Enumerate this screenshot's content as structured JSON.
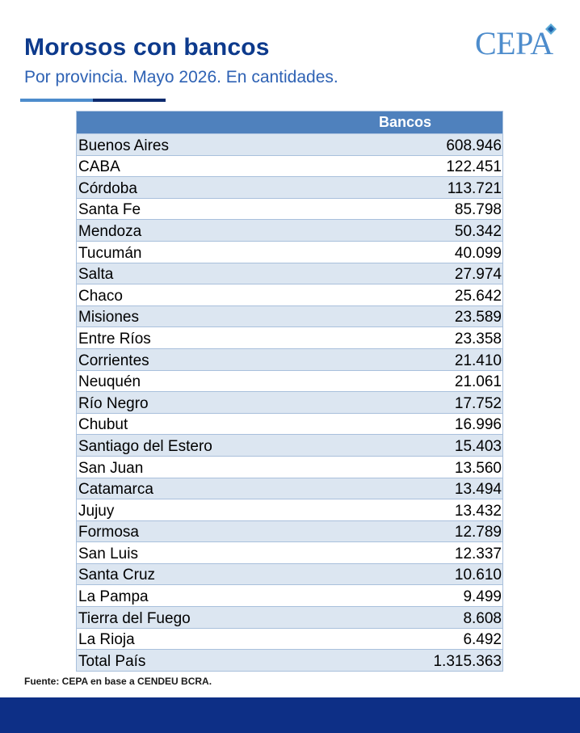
{
  "header": {
    "title": "Morosos con bancos",
    "subtitle": "Por provincia. Mayo 2026. En cantidades."
  },
  "logo": {
    "text": "CEPA",
    "accent_color": "#4d8ccc"
  },
  "table": {
    "column_header": "Bancos",
    "rows": [
      {
        "name": "Buenos Aires",
        "value": "608.946"
      },
      {
        "name": "CABA",
        "value": "122.451"
      },
      {
        "name": "Córdoba",
        "value": "113.721"
      },
      {
        "name": "Santa Fe",
        "value": "85.798"
      },
      {
        "name": "Mendoza",
        "value": "50.342"
      },
      {
        "name": "Tucumán",
        "value": "40.099"
      },
      {
        "name": "Salta",
        "value": "27.974"
      },
      {
        "name": "Chaco",
        "value": "25.642"
      },
      {
        "name": "Misiones",
        "value": "23.589"
      },
      {
        "name": "Entre Ríos",
        "value": "23.358"
      },
      {
        "name": "Corrientes",
        "value": "21.410"
      },
      {
        "name": "Neuquén",
        "value": "21.061"
      },
      {
        "name": "Río Negro",
        "value": "17.752"
      },
      {
        "name": "Chubut",
        "value": "16.996"
      },
      {
        "name": "Santiago del Estero",
        "value": "15.403"
      },
      {
        "name": "San Juan",
        "value": "13.560"
      },
      {
        "name": "Catamarca",
        "value": "13.494"
      },
      {
        "name": "Jujuy",
        "value": "13.432"
      },
      {
        "name": "Formosa",
        "value": "12.789"
      },
      {
        "name": "San Luis",
        "value": "12.337"
      },
      {
        "name": "Santa Cruz",
        "value": "10.610"
      },
      {
        "name": "La Pampa",
        "value": "9.499"
      },
      {
        "name": "Tierra del Fuego",
        "value": "8.608"
      },
      {
        "name": "La Rioja",
        "value": "6.492"
      },
      {
        "name": "Total País",
        "value": "1.315.363"
      }
    ]
  },
  "footer": {
    "source": "Fuente: CEPA en base a CENDEU BCRA."
  },
  "colors": {
    "title": "#0d3a8c",
    "subtitle": "#2e62b4",
    "header_fill": "#4f81bd",
    "band_fill": "#dce6f1",
    "footer_bar": "#0d2f86"
  }
}
